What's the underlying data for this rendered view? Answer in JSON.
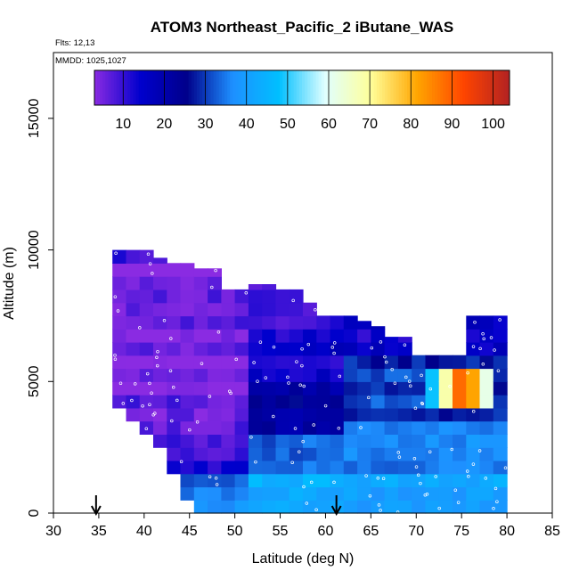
{
  "chart_data": {
    "type": "heatmap",
    "title": "ATOM3 Northeast_Pacific_2 iButane_WAS",
    "flights_label": "Flts: 12,13",
    "dates_label": "MMDD: 1025,1027",
    "xlabel": "Latitude (deg N)",
    "ylabel": "Altitude (m)",
    "xlim": [
      30,
      85
    ],
    "ylim": [
      0,
      17500
    ],
    "x_ticks": [
      "30",
      "35",
      "40",
      "45",
      "50",
      "55",
      "60",
      "65",
      "70",
      "75",
      "80",
      "85"
    ],
    "y_ticks": [
      "0",
      "5000",
      "10000",
      "15000"
    ],
    "colorbar": {
      "range": [
        3,
        104
      ],
      "ticks": [
        "10",
        "20",
        "30",
        "40",
        "50",
        "60",
        "70",
        "80",
        "90",
        "100"
      ],
      "colors": [
        "#8a2be2",
        "#0000cd",
        "#00008b",
        "#1e90ff",
        "#00bfff",
        "#e0ffff",
        "#ffff99",
        "#ffa500",
        "#ff4500",
        "#b22222"
      ]
    },
    "arrows_latitude": [
      34.7,
      61.2
    ],
    "field_latitude_edges": [
      36.5,
      38,
      39.5,
      41,
      42.5,
      44,
      45.5,
      47,
      48.5,
      50,
      51.5,
      53,
      54.5,
      56,
      57.5,
      59,
      60.5,
      62,
      63.5,
      65,
      66.5,
      68,
      69.5,
      71,
      72.5,
      74,
      75.5,
      77,
      78.5,
      80
    ],
    "field_altitude_edges": [
      0,
      500,
      1000,
      1500,
      2000,
      2500,
      3000,
      3500,
      4000,
      4500,
      5000,
      5500,
      6000,
      6500,
      7000,
      7500,
      8000,
      8500,
      9000,
      9500,
      10000
    ],
    "profile_top_altitude": [
      10800,
      10300,
      10000,
      9700,
      9500,
      9500,
      9300,
      9300,
      8500,
      8500,
      8700,
      8700,
      8500,
      8500,
      8000,
      7500,
      7500,
      7500,
      7300,
      7100,
      6700,
      6700,
      6000,
      6000,
      6000,
      6000,
      7500,
      7500,
      7500
    ],
    "profile_bottom_altitude": [
      4000,
      3500,
      3000,
      2500,
      1500,
      500,
      0,
      0,
      0,
      0,
      0,
      0,
      0,
      0,
      0,
      0,
      0,
      0,
      0,
      0,
      0,
      0,
      0,
      0,
      0,
      0,
      0,
      0,
      0
    ],
    "plume": {
      "lat_range": [
        71.5,
        79
      ],
      "alt_range": [
        4000,
        5500
      ],
      "peak_value": 95
    }
  }
}
